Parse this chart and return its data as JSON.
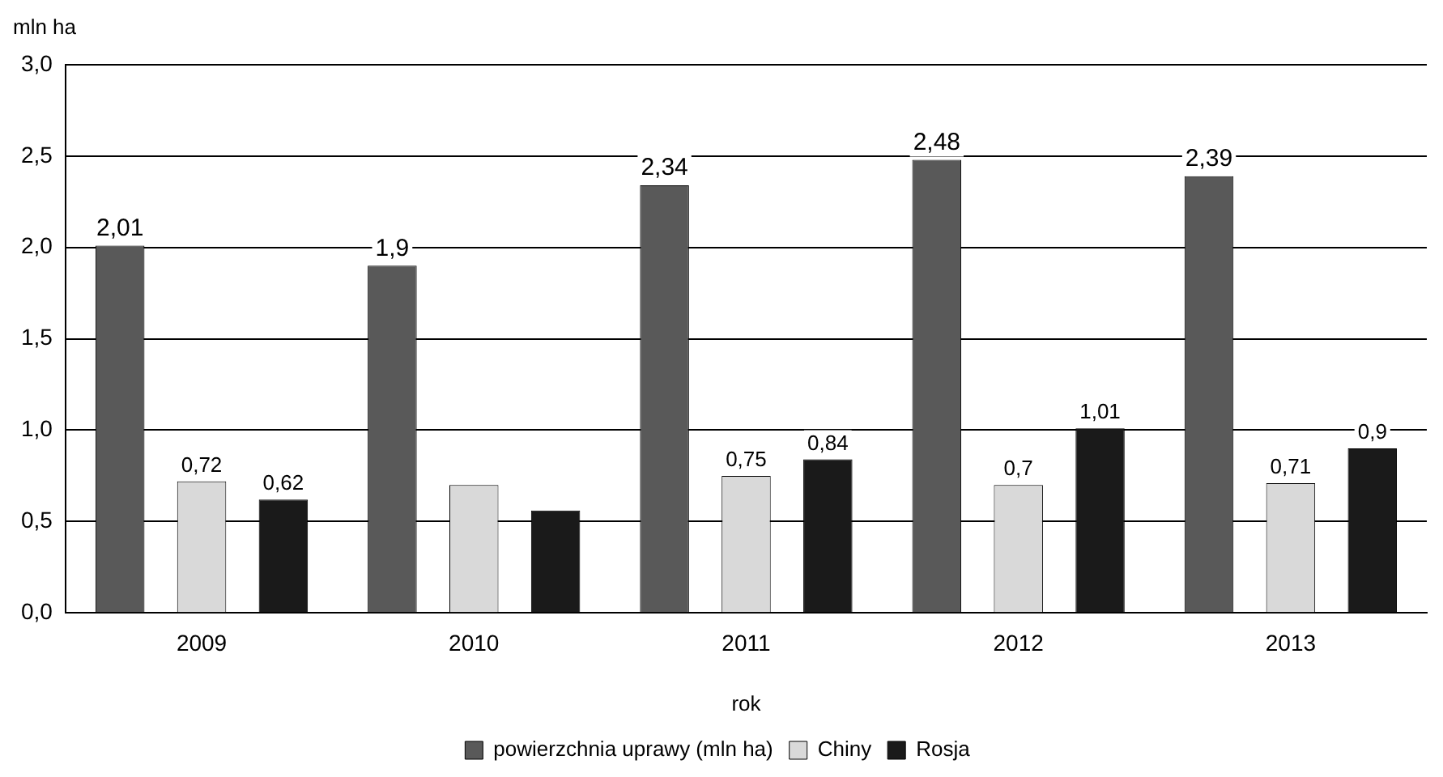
{
  "chart_data": {
    "type": "bar",
    "ylabel": "mln ha",
    "xlabel": "rok",
    "categories": [
      "2009",
      "2010",
      "2011",
      "2012",
      "2013"
    ],
    "series": [
      {
        "name": "powierzchnia uprawy (mln ha)",
        "color": "#595959",
        "values": [
          2.01,
          1.9,
          2.34,
          2.48,
          2.39
        ],
        "value_labels": [
          "2,01",
          "1,9",
          "2,34",
          "2,48",
          "2,39"
        ]
      },
      {
        "name": "Chiny",
        "color": "#d9d9d9",
        "values": [
          0.72,
          0.7,
          0.75,
          0.7,
          0.71
        ],
        "value_labels": [
          "0,72",
          null,
          "0,75",
          "0,7",
          "0,71"
        ]
      },
      {
        "name": "Rosja",
        "color": "#1a1a1a",
        "values": [
          0.62,
          0.56,
          0.84,
          1.01,
          0.9
        ],
        "value_labels": [
          "0,62",
          null,
          "0,84",
          "1,01",
          "0,9"
        ]
      }
    ],
    "ylim": [
      0,
      3
    ],
    "yticks": [
      {
        "value": 0,
        "label": "0,0"
      },
      {
        "value": 0.5,
        "label": "0,5"
      },
      {
        "value": 1,
        "label": "1,0"
      },
      {
        "value": 1.5,
        "label": "1,5"
      },
      {
        "value": 2,
        "label": "2,0"
      },
      {
        "value": 2.5,
        "label": "2,5"
      },
      {
        "value": 3,
        "label": "3,0"
      }
    ],
    "grid": "y",
    "legend": "bottom"
  }
}
